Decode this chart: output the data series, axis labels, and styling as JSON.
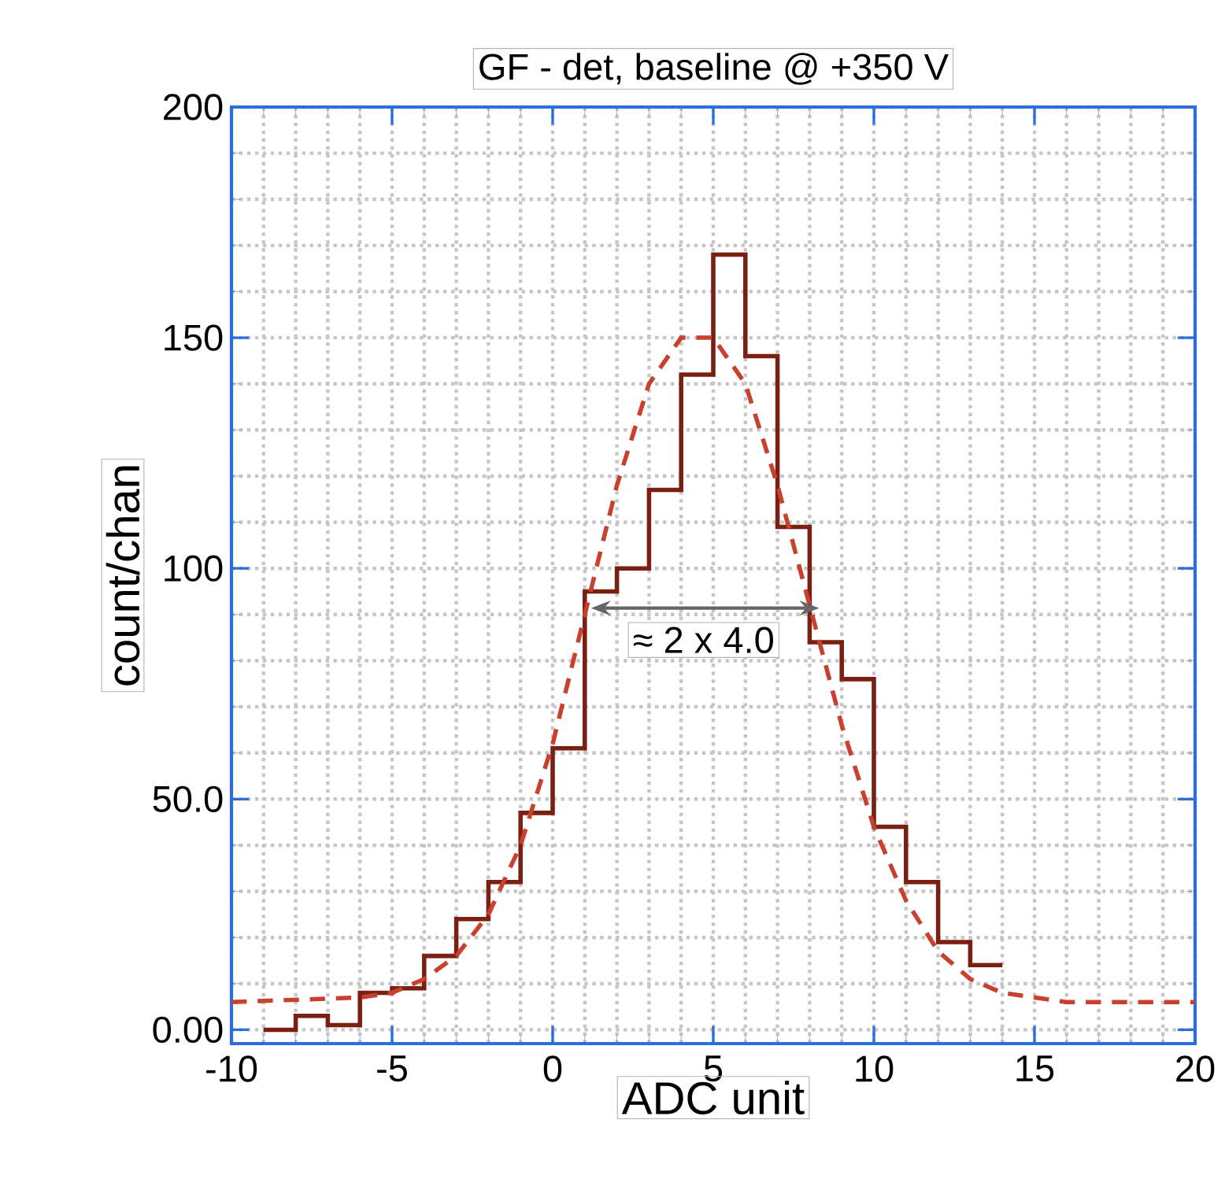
{
  "chart_data": {
    "type": "histogram",
    "title": "GF - det, baseline @ +350 V",
    "xlabel": "ADC unit",
    "ylabel": "count/chan",
    "xlim": [
      -10,
      20
    ],
    "ylim": [
      -3,
      200
    ],
    "xticks": [
      -10,
      -5,
      0,
      5,
      10,
      15,
      20
    ],
    "yticks": [
      {
        "value": 0,
        "label": "0.00"
      },
      {
        "value": 50,
        "label": "50.0"
      },
      100,
      150,
      200
    ],
    "grid": true,
    "series": [
      {
        "color": "#7a1f12",
        "bins": [
          -9,
          -8,
          -7,
          -6,
          -5,
          -4,
          -3,
          -2,
          -1,
          0,
          1,
          2,
          3,
          4,
          5,
          6,
          7,
          8,
          9,
          10,
          11,
          12,
          13,
          14
        ],
        "values": [
          0,
          3,
          1,
          8,
          9,
          16,
          24,
          32,
          47,
          61,
          95,
          100,
          117,
          142,
          168,
          146,
          109,
          84,
          76,
          44,
          32,
          19,
          14
        ]
      },
      {
        "type": "line",
        "color": "#c8412f",
        "line_style": "dashed",
        "x": [
          -10,
          -6,
          -5,
          -4,
          -3,
          -2,
          -1,
          0,
          1,
          2,
          3,
          4,
          5,
          6,
          7,
          8,
          9,
          10,
          11,
          12,
          13,
          14,
          16,
          20
        ],
        "values": [
          6,
          7,
          8,
          11,
          16,
          25,
          40,
          62,
          90,
          118,
          140,
          150,
          150,
          140,
          118,
          92,
          66,
          44,
          28,
          17,
          11,
          8,
          6,
          6
        ]
      }
    ],
    "annotations": [
      "≈ 2 x 4.0"
    ]
  }
}
